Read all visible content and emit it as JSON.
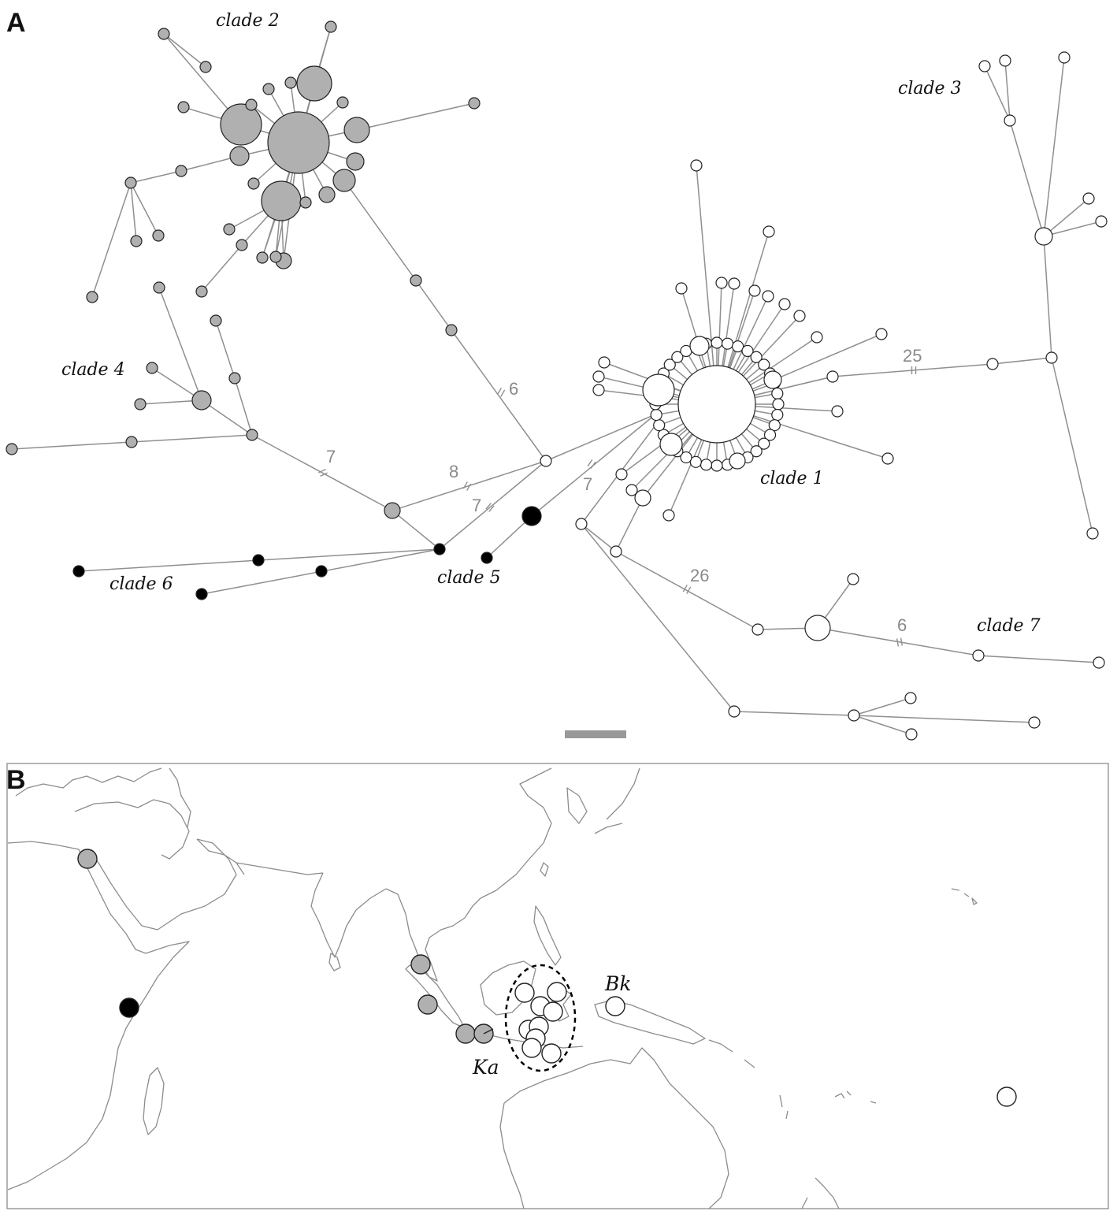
{
  "panels": {
    "a_label": "A",
    "b_label": "B"
  },
  "colors": {
    "clade_gray": "#b0b0b0",
    "clade_white": "#ffffff",
    "clade_black": "#000000",
    "edge": "#8f8f8f",
    "scale_bar": "#999999"
  },
  "network": {
    "clades": [
      {
        "id": "clade1",
        "label": "clade 1",
        "color": "white"
      },
      {
        "id": "clade2",
        "label": "clade 2",
        "color": "gray"
      },
      {
        "id": "clade3",
        "label": "clade 3",
        "color": "white"
      },
      {
        "id": "clade4",
        "label": "clade 4",
        "color": "gray"
      },
      {
        "id": "clade5",
        "label": "clade 5",
        "color": "black"
      },
      {
        "id": "clade6",
        "label": "clade 6",
        "color": "black"
      },
      {
        "id": "clade7",
        "label": "clade 7",
        "color": "white"
      }
    ],
    "mutation_steps": [
      "6",
      "7",
      "8",
      "7",
      "7",
      "25",
      "26",
      "6"
    ]
  },
  "map": {
    "site_labels": [
      "Ka",
      "Bk"
    ]
  }
}
